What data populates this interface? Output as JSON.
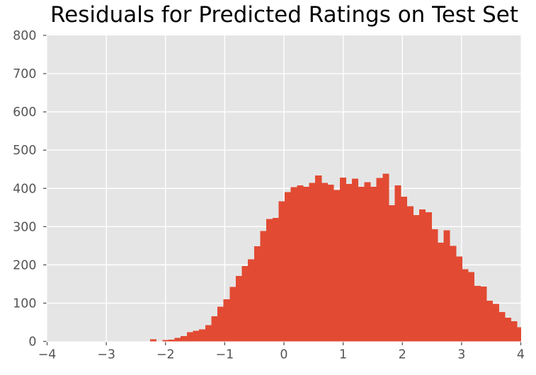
{
  "figure": {
    "title": "Residuals for Predicted Ratings on Test Set"
  },
  "chart_data": {
    "type": "bar",
    "subtype": "histogram",
    "title": "Residuals for Predicted Ratings on Test Set",
    "xlabel": "",
    "ylabel": "",
    "xlim": [
      -4,
      4
    ],
    "ylim": [
      0,
      800
    ],
    "x_ticks": [
      -4,
      -3,
      -2,
      -1,
      0,
      1,
      2,
      3,
      4
    ],
    "x_tick_labels": [
      "−4",
      "−3",
      "−2",
      "−1",
      "0",
      "1",
      "2",
      "3",
      "4"
    ],
    "y_ticks": [
      0,
      100,
      200,
      300,
      400,
      500,
      600,
      700,
      800
    ],
    "y_tick_labels": [
      "0",
      "100",
      "200",
      "300",
      "400",
      "500",
      "600",
      "700",
      "800"
    ],
    "grid": true,
    "legend": "none",
    "bin_start": -2.26,
    "bin_width": 0.1033,
    "counts": [
      6,
      0,
      4,
      5,
      9,
      14,
      24,
      28,
      31,
      43,
      66,
      91,
      110,
      142,
      171,
      197,
      215,
      249,
      289,
      320,
      323,
      366,
      390,
      403,
      408,
      404,
      414,
      434,
      414,
      410,
      396,
      428,
      412,
      425,
      404,
      416,
      404,
      427,
      438,
      356,
      408,
      378,
      353,
      330,
      345,
      338,
      293,
      258,
      290,
      250,
      222,
      189,
      181,
      145,
      143,
      106,
      98,
      77,
      62,
      53,
      37
    ],
    "style": {
      "bar_color": "#E24A33",
      "plot_background": "#E5E5E5",
      "grid_color": "#FFFFFF",
      "tick_color": "#555555",
      "tick_label_color": "#555555",
      "title_color": "#000000",
      "figure_background": "#FFFFFF"
    }
  }
}
